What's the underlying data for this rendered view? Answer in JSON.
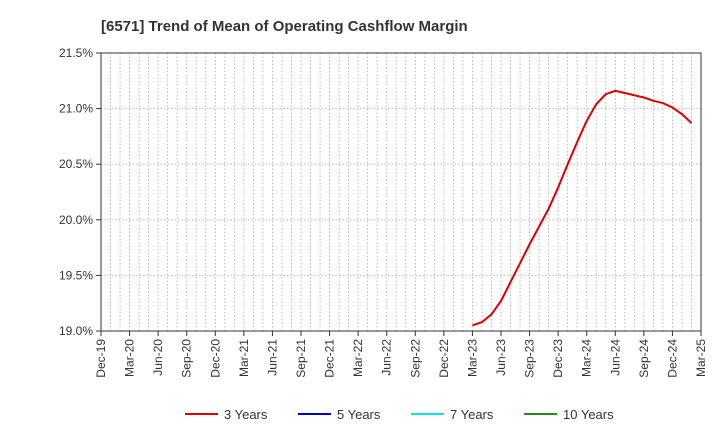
{
  "chart_data": {
    "type": "line",
    "title": "[6571]  Trend of Mean of Operating Cashflow Margin",
    "xlabel": "",
    "ylabel": "",
    "ylim": [
      19.0,
      21.5
    ],
    "yticks": [
      "21.5%",
      "21.0%",
      "20.5%",
      "20.0%",
      "19.5%",
      "19.0%"
    ],
    "ytick_values": [
      21.5,
      21.0,
      20.5,
      20.0,
      19.5,
      19.0
    ],
    "xticks": [
      "Dec-19",
      "Mar-20",
      "Jun-20",
      "Sep-20",
      "Dec-20",
      "Mar-21",
      "Jun-21",
      "Sep-21",
      "Dec-21",
      "Mar-22",
      "Jun-22",
      "Sep-22",
      "Dec-22",
      "Mar-23",
      "Jun-23",
      "Sep-23",
      "Dec-23",
      "Mar-24",
      "Jun-24",
      "Sep-24",
      "Dec-24",
      "Mar-25"
    ],
    "x_range": [
      "2019-12",
      "2025-03"
    ],
    "grid": true,
    "legend_position": "bottom",
    "series": [
      {
        "name": "3 Years",
        "color": "#dd0000",
        "points": [
          [
            "2023-03",
            19.05
          ],
          [
            "2023-04",
            19.08
          ],
          [
            "2023-05",
            19.15
          ],
          [
            "2023-06",
            19.27
          ],
          [
            "2023-07",
            19.44
          ],
          [
            "2023-08",
            19.61
          ],
          [
            "2023-09",
            19.78
          ],
          [
            "2023-10",
            19.94
          ],
          [
            "2023-11",
            20.1
          ],
          [
            "2023-12",
            20.29
          ],
          [
            "2024-01",
            20.5
          ],
          [
            "2024-02",
            20.7
          ],
          [
            "2024-03",
            20.89
          ],
          [
            "2024-04",
            21.04
          ],
          [
            "2024-05",
            21.13
          ],
          [
            "2024-06",
            21.16
          ],
          [
            "2024-07",
            21.14
          ],
          [
            "2024-08",
            21.12
          ],
          [
            "2024-09",
            21.1
          ],
          [
            "2024-10",
            21.07
          ],
          [
            "2024-11",
            21.05
          ],
          [
            "2024-12",
            21.01
          ],
          [
            "2025-01",
            20.95
          ],
          [
            "2025-02",
            20.87
          ]
        ]
      },
      {
        "name": "5 Years",
        "color": "#0000cc",
        "points": []
      },
      {
        "name": "7 Years",
        "color": "#00e5ee",
        "points": []
      },
      {
        "name": "10 Years",
        "color": "#228b22",
        "points": []
      }
    ]
  }
}
